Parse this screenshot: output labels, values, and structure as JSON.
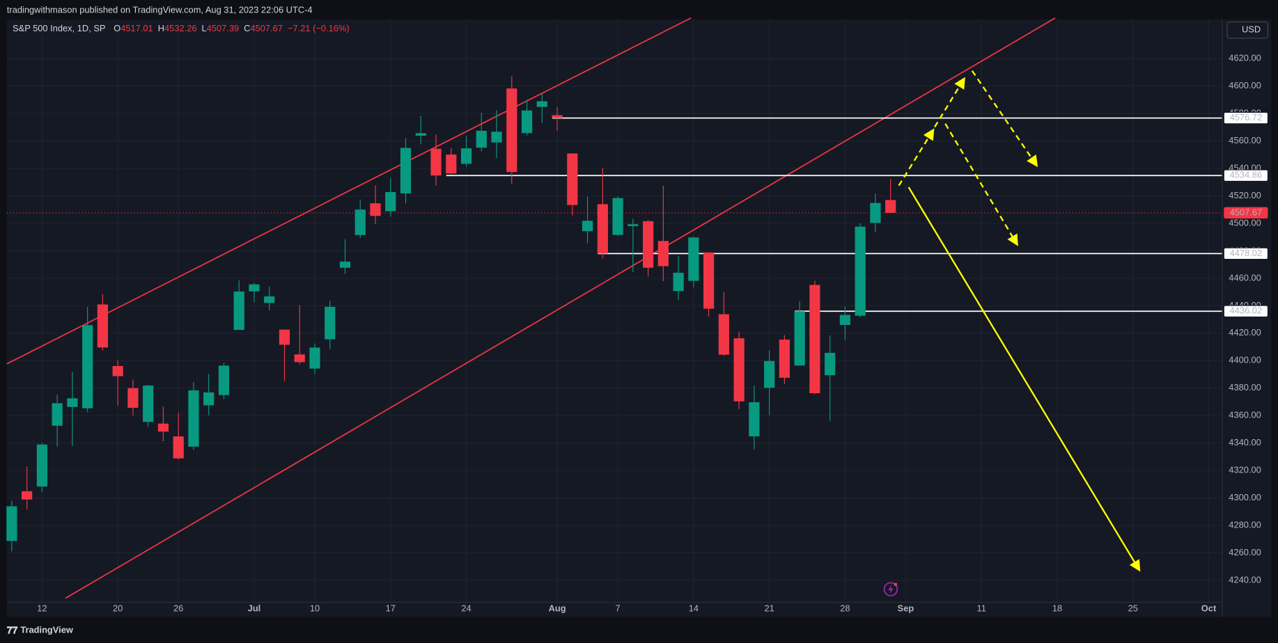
{
  "header": {
    "publisher": "tradingwithmason published on TradingView.com, Aug 31, 2023 22:06 UTC-4"
  },
  "footer": {
    "brand": "TradingView"
  },
  "chart_data": {
    "type": "candlestick",
    "title": "S&P 500 Index, 1D, SP",
    "currency": "USD",
    "ohlc_labels": [
      "O",
      "H",
      "L",
      "C"
    ],
    "change_label": "−7.21 (−0.16%)",
    "up_color": "#089981",
    "down_color": "#f23645",
    "grid": true,
    "categories": [
      "2023-06-08",
      "2023-06-09",
      "2023-06-12",
      "2023-06-13",
      "2023-06-14",
      "2023-06-15",
      "2023-06-16",
      "2023-06-20",
      "2023-06-21",
      "2023-06-22",
      "2023-06-23",
      "2023-06-26",
      "2023-06-27",
      "2023-06-28",
      "2023-06-29",
      "2023-06-30",
      "2023-07-03",
      "2023-07-05",
      "2023-07-06",
      "2023-07-07",
      "2023-07-10",
      "2023-07-11",
      "2023-07-12",
      "2023-07-13",
      "2023-07-14",
      "2023-07-17",
      "2023-07-18",
      "2023-07-19",
      "2023-07-20",
      "2023-07-21",
      "2023-07-24",
      "2023-07-25",
      "2023-07-26",
      "2023-07-27",
      "2023-07-28",
      "2023-07-31",
      "2023-08-01",
      "2023-08-02",
      "2023-08-03",
      "2023-08-04",
      "2023-08-07",
      "2023-08-08",
      "2023-08-09",
      "2023-08-10",
      "2023-08-11",
      "2023-08-14",
      "2023-08-15",
      "2023-08-16",
      "2023-08-17",
      "2023-08-18",
      "2023-08-21",
      "2023-08-22",
      "2023-08-23",
      "2023-08-24",
      "2023-08-25",
      "2023-08-28",
      "2023-08-29",
      "2023-08-30",
      "2023-08-31",
      "2023-09-01",
      "2023-09-05",
      "2023-09-06",
      "2023-09-07",
      "2023-09-08",
      "2023-09-11",
      "2023-09-12",
      "2023-09-13",
      "2023-09-14",
      "2023-09-15",
      "2023-09-18",
      "2023-09-19",
      "2023-09-20",
      "2023-09-21",
      "2023-09-22",
      "2023-09-25",
      "2023-09-26",
      "2023-09-27",
      "2023-09-28",
      "2023-09-29",
      "2023-10-02",
      "2023-10-03"
    ],
    "open": [
      4268.69,
      4304.88,
      4308.32,
      4352.61,
      4366.29,
      4365.33,
      4440.95,
      4396.11,
      4380.01,
      4355.4,
      4354.17,
      4344.84,
      4337.36,
      4367.48,
      4374.94,
      4422.44,
      4450.48,
      4442.04,
      4422.62,
      4404.54,
      4394.23,
      4415.55,
      4467.69,
      4491.5,
      4514.61,
      4508.86,
      4521.78,
      4563.87,
      4554.38,
      4550.16,
      4543.39,
      4555.19,
      4558.96,
      4598.26,
      4565.75,
      4584.82,
      4578.83,
      4550.93,
      4494.27,
      4513.96,
      4491.58,
      4498.03,
      4501.57,
      4487.16,
      4450.69,
      4458.13,
      4478.87,
      4433.79,
      4416.32,
      4344.88,
      4380.28,
      4415.33,
      4396.44,
      4455.16,
      4389.38,
      4426.03,
      4432.75,
      4500.34,
      4517.01,
      null,
      null,
      null,
      null,
      null,
      null,
      null,
      null,
      null,
      null,
      null,
      null,
      null,
      null,
      null,
      null,
      null,
      null,
      null,
      null,
      null,
      null
    ],
    "high": [
      4298.01,
      4322.62,
      4340.13,
      4375.37,
      4391.82,
      4439.2,
      4448.47,
      4400.15,
      4386.22,
      4382.25,
      4366.55,
      4362.06,
      4384.42,
      4390.35,
      4398.39,
      4458.48,
      4456.46,
      4454.06,
      4422.62,
      4440.39,
      4412.6,
      4443.64,
      4488.34,
      4517.38,
      4527.76,
      4532.85,
      4562.3,
      4578.43,
      4564.74,
      4555.0,
      4563.41,
      4580.62,
      4582.47,
      4607.07,
      4590.16,
      4594.22,
      4584.62,
      4550.93,
      4519.49,
      4540.34,
      4519.84,
      4503.31,
      4502.44,
      4527.37,
      4476.23,
      4490.33,
      4478.87,
      4449.95,
      4421.17,
      4381.82,
      4407.55,
      4418.59,
      4443.18,
      4458.3,
      4418.46,
      4439.56,
      4500.14,
      4521.65,
      4532.26,
      null,
      null,
      null,
      null,
      null,
      null,
      null,
      null,
      null,
      null,
      null,
      null,
      null,
      null,
      null,
      null,
      null,
      null,
      null,
      null,
      null,
      null
    ],
    "low": [
      4261.07,
      4291.7,
      4304.37,
      4337.5,
      4337.85,
      4362.6,
      4407.44,
      4367.19,
      4360.14,
      4351.82,
      4341.34,
      4328.08,
      4335.0,
      4360.22,
      4371.97,
      4422.44,
      4442.29,
      4436.61,
      4385.05,
      4397.4,
      4389.92,
      4408.46,
      4463.23,
      4489.36,
      4499.56,
      4504.9,
      4514.59,
      4557.48,
      4527.56,
      4535.79,
      4541.29,
      4552.42,
      4547.58,
      4528.56,
      4564.01,
      4573.14,
      4567.53,
      4505.75,
      4485.54,
      4474.55,
      4491.15,
      4464.39,
      4461.33,
      4457.92,
      4443.98,
      4453.44,
      4432.19,
      4403.55,
      4364.83,
      4335.31,
      4360.3,
      4382.77,
      4396.44,
      4375.55,
      4356.29,
      4414.98,
      4431.68,
      4493.59,
      4507.39,
      null,
      null,
      null,
      null,
      null,
      null,
      null,
      null,
      null,
      null,
      null,
      null,
      null,
      null,
      null,
      null,
      null,
      null,
      null,
      null,
      null,
      null
    ],
    "close": [
      4293.93,
      4298.86,
      4338.93,
      4369.01,
      4372.59,
      4425.84,
      4409.59,
      4388.71,
      4365.69,
      4381.89,
      4348.33,
      4328.82,
      4378.41,
      4376.86,
      4396.44,
      4450.38,
      4455.59,
      4446.82,
      4411.59,
      4398.95,
      4409.53,
      4439.26,
      4472.16,
      4510.04,
      4505.42,
      4522.79,
      4554.98,
      4565.72,
      4534.87,
      4536.34,
      4554.64,
      4567.46,
      4566.75,
      4537.41,
      4582.23,
      4588.96,
      4576.73,
      4513.39,
      4501.89,
      4478.03,
      4518.44,
      4499.38,
      4467.71,
      4468.83,
      4464.05,
      4489.72,
      4437.86,
      4404.33,
      4370.36,
      4369.71,
      4399.77,
      4387.55,
      4436.01,
      4376.31,
      4405.71,
      4433.31,
      4497.63,
      4514.87,
      4507.67,
      null,
      null,
      null,
      null,
      null,
      null,
      null,
      null,
      null,
      null,
      null,
      null,
      null,
      null,
      null,
      null,
      null,
      null,
      null,
      null,
      null,
      null
    ],
    "ylim": [
      4224,
      4648
    ],
    "yticks": [
      {
        "value": 4240,
        "label": "4240.00"
      },
      {
        "value": 4260,
        "label": "4260.00"
      },
      {
        "value": 4280,
        "label": "4280.00"
      },
      {
        "value": 4300,
        "label": "4300.00"
      },
      {
        "value": 4320,
        "label": "4320.00"
      },
      {
        "value": 4340,
        "label": "4340.00"
      },
      {
        "value": 4360,
        "label": "4360.00"
      },
      {
        "value": 4380,
        "label": "4380.00"
      },
      {
        "value": 4400,
        "label": "4400.00"
      },
      {
        "value": 4420,
        "label": "4420.00"
      },
      {
        "value": 4440,
        "label": "4440.00"
      },
      {
        "value": 4460,
        "label": "4460.00"
      },
      {
        "value": 4480,
        "label": "4480.00"
      },
      {
        "value": 4500,
        "label": "4500.00"
      },
      {
        "value": 4520,
        "label": "4520.00"
      },
      {
        "value": 4540,
        "label": "4540.00"
      },
      {
        "value": 4560,
        "label": "4560.00"
      },
      {
        "value": 4580,
        "label": "4580.00"
      },
      {
        "value": 4600,
        "label": "4600.00"
      },
      {
        "value": 4620,
        "label": "4620.00"
      }
    ],
    "xticks": [
      {
        "value": "2023-06-12",
        "label": "12"
      },
      {
        "value": "2023-06-20",
        "label": "20"
      },
      {
        "value": "2023-06-26",
        "label": "26"
      },
      {
        "value": "2023-07-03",
        "label": "Jul"
      },
      {
        "value": "2023-07-10",
        "label": "10"
      },
      {
        "value": "2023-07-17",
        "label": "17"
      },
      {
        "value": "2023-07-24",
        "label": "24"
      },
      {
        "value": "2023-08-01",
        "label": "Aug"
      },
      {
        "value": "2023-08-07",
        "label": "7"
      },
      {
        "value": "2023-08-14",
        "label": "14"
      },
      {
        "value": "2023-08-21",
        "label": "21"
      },
      {
        "value": "2023-08-28",
        "label": "28"
      },
      {
        "value": "2023-09-01",
        "label": "Sep"
      },
      {
        "value": "2023-09-11",
        "label": "11"
      },
      {
        "value": "2023-09-18",
        "label": "18"
      },
      {
        "value": "2023-09-25",
        "label": "25"
      },
      {
        "value": "2023-10-02",
        "label": "Oct"
      }
    ],
    "levels": [
      {
        "price": 4576.72,
        "from": "2023-08-01"
      },
      {
        "price": 4534.86,
        "from": "2023-07-21"
      },
      {
        "price": 4478.02,
        "from": "2023-08-04"
      },
      {
        "price": 4436.02,
        "from": "2023-08-23"
      }
    ]
  }
}
